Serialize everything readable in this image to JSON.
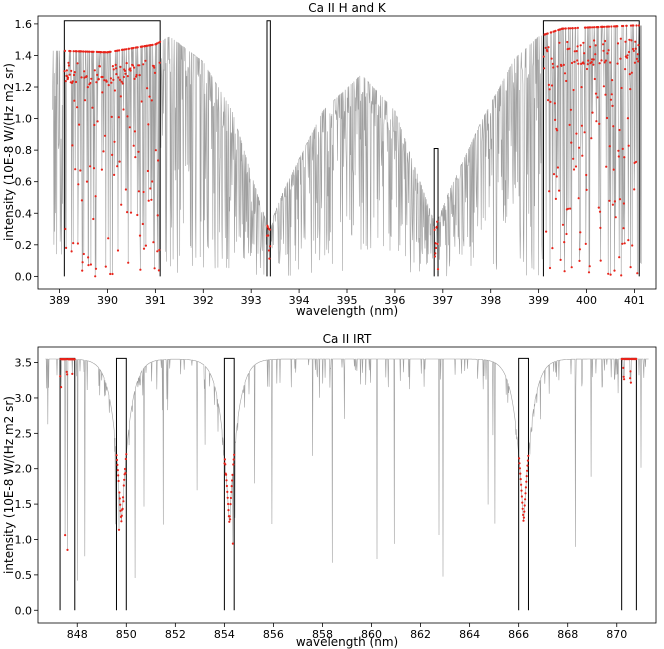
{
  "chart_data": [
    {
      "type": "line",
      "title": "Ca II H and K",
      "xlabel": "wavelength (nm)",
      "ylabel": "intensity (10E-8 W/(Hz m2 sr)",
      "xlim": [
        388.55,
        401.45
      ],
      "ylim": [
        -0.08,
        1.65
      ],
      "grid": false,
      "x_ticks": [
        "389",
        "390",
        "391",
        "392",
        "393",
        "394",
        "395",
        "396",
        "397",
        "398",
        "399",
        "400",
        "401"
      ],
      "y_ticks": [
        "0.0",
        "0.2",
        "0.4",
        "0.6",
        "0.8",
        "1.0",
        "1.2",
        "1.4",
        "1.6"
      ],
      "spectrum_color": "#a0a0a0",
      "sample_point_color": "#e8241b",
      "filter_color": "#000000",
      "continuum_anchors": [
        [
          389.0,
          1.43
        ],
        [
          390.0,
          1.42
        ],
        [
          391.0,
          1.47
        ],
        [
          391.3,
          1.52
        ],
        [
          392.0,
          1.36
        ],
        [
          392.6,
          1.05
        ],
        [
          393.0,
          0.65
        ],
        [
          393.36,
          0.3
        ],
        [
          393.7,
          0.56
        ],
        [
          394.5,
          1.05
        ],
        [
          395.3,
          1.28
        ],
        [
          396.0,
          1.05
        ],
        [
          396.5,
          0.62
        ],
        [
          396.85,
          0.32
        ],
        [
          397.1,
          0.52
        ],
        [
          397.8,
          0.98
        ],
        [
          398.5,
          1.38
        ],
        [
          399.0,
          1.52
        ],
        [
          399.5,
          1.57
        ],
        [
          401.0,
          1.59
        ]
      ],
      "filters": [
        {
          "range": [
            389.1,
            391.1
          ],
          "top": 1.62
        },
        {
          "range": [
            393.33,
            393.4
          ],
          "top": 1.62
        },
        {
          "range": [
            396.82,
            396.9
          ],
          "top": 0.81
        },
        {
          "range": [
            399.1,
            401.1
          ],
          "top": 1.62
        }
      ],
      "core_lines": [
        {
          "center": 393.37,
          "depth": 0.3
        },
        {
          "center": 396.85,
          "depth": 0.32
        }
      ]
    },
    {
      "type": "line",
      "title": "Ca II IRT",
      "xlabel": "wavelength (nm)",
      "ylabel": "intensity (10E-8 W/(Hz m2 sr)",
      "xlim": [
        846.4,
        871.6
      ],
      "ylim": [
        -0.18,
        3.72
      ],
      "grid": false,
      "x_ticks": [
        "848",
        "850",
        "852",
        "854",
        "856",
        "858",
        "860",
        "862",
        "864",
        "866",
        "868",
        "870"
      ],
      "y_ticks": [
        "0.0",
        "0.5",
        "1.0",
        "1.5",
        "2.0",
        "2.5",
        "3.0",
        "3.5"
      ],
      "spectrum_color": "#a0a0a0",
      "sample_point_color": "#e8241b",
      "filter_color": "#000000",
      "continuum_level": 3.55,
      "core_lines": [
        {
          "center": 849.8,
          "depth": 2.3
        },
        {
          "center": 854.2,
          "depth": 2.3
        },
        {
          "center": 866.2,
          "depth": 2.3
        }
      ],
      "filters": [
        {
          "range": [
            847.3,
            847.9
          ],
          "top": 3.56
        },
        {
          "range": [
            849.6,
            850.0
          ],
          "top": 3.56
        },
        {
          "range": [
            854.0,
            854.4
          ],
          "top": 3.56
        },
        {
          "range": [
            866.0,
            866.4
          ],
          "top": 3.56
        },
        {
          "range": [
            870.2,
            870.8
          ],
          "top": 3.56
        }
      ]
    }
  ]
}
